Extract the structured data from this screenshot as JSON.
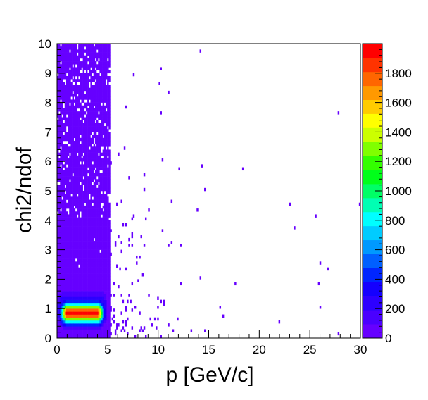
{
  "chart_data": {
    "type": "heatmap",
    "title": "",
    "xlabel": "p [GeV/c]",
    "ylabel": "chi2/ndof",
    "xlim": [
      0,
      30
    ],
    "ylim": [
      0,
      10
    ],
    "x_ticks": [
      0,
      5,
      10,
      15,
      20,
      25,
      30
    ],
    "y_ticks": [
      0,
      1,
      2,
      3,
      4,
      5,
      6,
      7,
      8,
      9,
      10
    ],
    "x_tick_labels": [
      "0",
      "5",
      "10",
      "15",
      "20",
      "25",
      "30"
    ],
    "y_tick_labels": [
      "0",
      "1",
      "2",
      "3",
      "4",
      "5",
      "6",
      "7",
      "8",
      "9",
      "10"
    ],
    "z_range": [
      0,
      2000
    ],
    "z_ticks": [
      0,
      200,
      400,
      600,
      800,
      1000,
      1200,
      1400,
      1600,
      1800
    ],
    "z_tick_labels": [
      "0",
      "200",
      "400",
      "600",
      "800",
      "1000",
      "1200",
      "1400",
      "1600",
      "1800"
    ],
    "palette": [
      "#6600ff",
      "#4a00ff",
      "#2d00ff",
      "#1400ff",
      "#0026ff",
      "#0060ff",
      "#0099ff",
      "#00ccff",
      "#00ffff",
      "#00ffb3",
      "#00ff66",
      "#00ff1a",
      "#33ff00",
      "#80ff00",
      "#ccff00",
      "#ffff00",
      "#ffcc00",
      "#ff9900",
      "#ff6600",
      "#ff3300",
      "#ff0000"
    ],
    "features": [
      {
        "description": "dense low-count band",
        "x_range": [
          0,
          5.2
        ],
        "y_range": [
          0,
          10
        ],
        "z_approx": 30
      },
      {
        "description": "peak core",
        "x_center": 2.5,
        "y_center": 0.85,
        "z_max": 1950
      }
    ]
  }
}
